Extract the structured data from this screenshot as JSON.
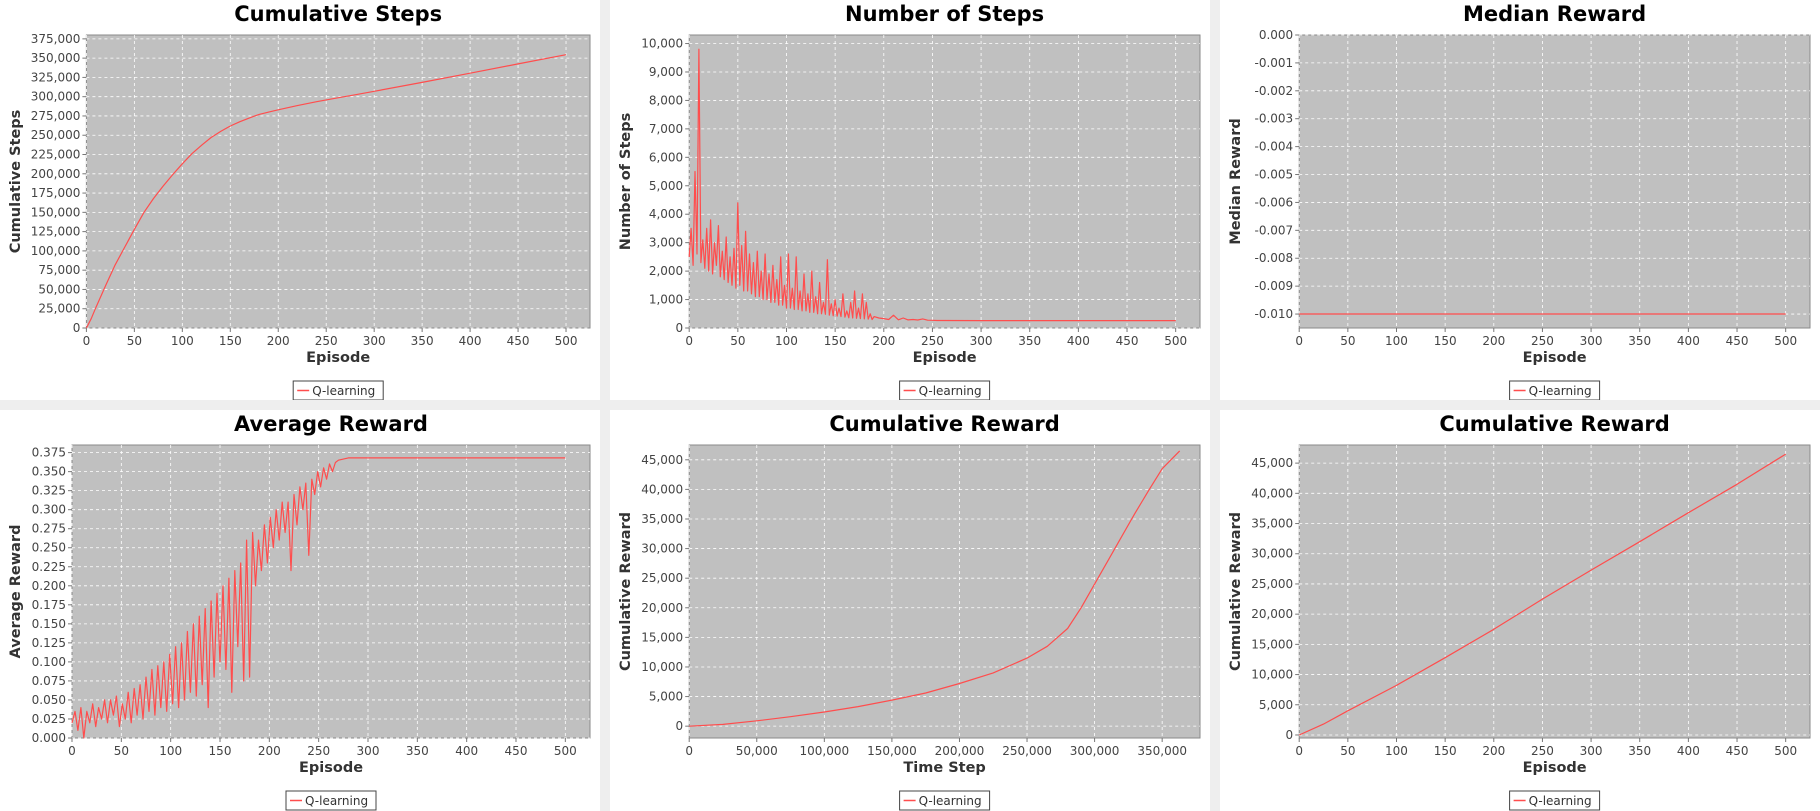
{
  "chart_data": [
    {
      "type": "line",
      "title": "Cumulative Steps",
      "xlabel": "Episode",
      "ylabel": "Cumulative Steps",
      "xlim": [
        0,
        525
      ],
      "ylim": [
        0,
        380000
      ],
      "xticks": [
        0,
        50,
        100,
        150,
        200,
        250,
        300,
        350,
        400,
        450,
        500
      ],
      "yticks": [
        0,
        25000,
        50000,
        75000,
        100000,
        125000,
        150000,
        175000,
        200000,
        225000,
        250000,
        275000,
        300000,
        325000,
        350000,
        375000
      ],
      "grid": true,
      "legend": "bottom-center",
      "series": [
        {
          "name": "Q-learning",
          "color": "#ff4d4d",
          "x": [
            0,
            5,
            10,
            20,
            30,
            40,
            50,
            60,
            70,
            80,
            90,
            100,
            110,
            120,
            130,
            140,
            150,
            160,
            170,
            180,
            190,
            200,
            220,
            240,
            260,
            280,
            300,
            350,
            400,
            450,
            500
          ],
          "y": [
            0,
            12000,
            27000,
            55000,
            82000,
            105000,
            128000,
            150000,
            168000,
            184000,
            199000,
            213000,
            226000,
            237000,
            247000,
            255000,
            262000,
            267500,
            272500,
            277000,
            280000,
            283000,
            288500,
            293500,
            298000,
            302500,
            307000,
            318500,
            330500,
            342500,
            354500
          ]
        }
      ]
    },
    {
      "type": "line",
      "title": "Number of Steps",
      "xlabel": "Episode",
      "ylabel": "Number of Steps",
      "xlim": [
        0,
        525
      ],
      "ylim": [
        0,
        10300
      ],
      "xticks": [
        0,
        50,
        100,
        150,
        200,
        250,
        300,
        350,
        400,
        450,
        500
      ],
      "yticks": [
        0,
        1000,
        2000,
        3000,
        4000,
        5000,
        6000,
        7000,
        8000,
        9000,
        10000
      ],
      "grid": true,
      "legend": "bottom-center",
      "series": [
        {
          "name": "Q-learning",
          "color": "#ff4d4d",
          "x": [
            0,
            2,
            4,
            6,
            8,
            10,
            12,
            14,
            16,
            18,
            20,
            22,
            24,
            26,
            28,
            30,
            32,
            34,
            36,
            38,
            40,
            42,
            44,
            46,
            48,
            50,
            52,
            54,
            56,
            58,
            60,
            62,
            64,
            66,
            68,
            70,
            72,
            74,
            76,
            78,
            80,
            82,
            84,
            86,
            88,
            90,
            92,
            94,
            96,
            98,
            100,
            102,
            104,
            106,
            108,
            110,
            112,
            114,
            116,
            118,
            120,
            122,
            124,
            126,
            128,
            130,
            132,
            134,
            136,
            138,
            140,
            142,
            144,
            146,
            148,
            150,
            152,
            154,
            156,
            158,
            160,
            162,
            164,
            166,
            168,
            170,
            172,
            174,
            176,
            178,
            180,
            182,
            184,
            186,
            188,
            190,
            195,
            200,
            205,
            210,
            215,
            220,
            225,
            230,
            235,
            240,
            245,
            250,
            255,
            260,
            300,
            350,
            400,
            450,
            500
          ],
          "y": [
            2500,
            3500,
            2200,
            5500,
            2600,
            9800,
            2300,
            3100,
            2100,
            3500,
            2000,
            3800,
            1900,
            3000,
            2200,
            3600,
            1800,
            2700,
            1700,
            3200,
            1600,
            2500,
            1500,
            2800,
            1400,
            4400,
            1500,
            2900,
            1300,
            3400,
            1300,
            2600,
            1200,
            2300,
            1100,
            2700,
            1100,
            2000,
            1000,
            2600,
            1000,
            1900,
            900,
            2200,
            900,
            1700,
            800,
            2500,
            800,
            1500,
            700,
            2600,
            700,
            1400,
            650,
            2500,
            650,
            1300,
            600,
            1900,
            600,
            1200,
            550,
            2000,
            550,
            1100,
            500,
            1600,
            500,
            900,
            480,
            2400,
            450,
            850,
            430,
            1000,
            420,
            700,
            400,
            1200,
            380,
            600,
            360,
            900,
            350,
            1300,
            340,
            700,
            330,
            1200,
            320,
            900,
            310,
            500,
            300,
            400,
            350,
            330,
            300,
            450,
            290,
            350,
            285,
            300,
            280,
            320,
            275,
            270,
            265,
            262,
            260,
            260,
            260,
            260,
            260
          ]
        }
      ]
    },
    {
      "type": "line",
      "title": "Median Reward",
      "xlabel": "Episode",
      "ylabel": "Median Reward",
      "xlim": [
        0,
        525
      ],
      "ylim": [
        -0.0105,
        0.0
      ],
      "xticks": [
        0,
        50,
        100,
        150,
        200,
        250,
        300,
        350,
        400,
        450,
        500
      ],
      "yticks": [
        -0.01,
        -0.009,
        -0.008,
        -0.007,
        -0.006,
        -0.005,
        -0.004,
        -0.003,
        -0.002,
        -0.001,
        0.0
      ],
      "grid": true,
      "legend": "bottom-center",
      "series": [
        {
          "name": "Q-learning",
          "color": "#ff4d4d",
          "x": [
            0,
            500
          ],
          "y": [
            -0.01,
            -0.01
          ]
        }
      ]
    },
    {
      "type": "line",
      "title": "Average Reward",
      "xlabel": "Episode",
      "ylabel": "Average Reward",
      "xlim": [
        0,
        525
      ],
      "ylim": [
        0,
        0.385
      ],
      "xticks": [
        0,
        50,
        100,
        150,
        200,
        250,
        300,
        350,
        400,
        450,
        500
      ],
      "yticks": [
        0,
        0.025,
        0.05,
        0.075,
        0.1,
        0.125,
        0.15,
        0.175,
        0.2,
        0.225,
        0.25,
        0.275,
        0.3,
        0.325,
        0.35,
        0.375
      ],
      "grid": true,
      "legend": "bottom-center",
      "series": [
        {
          "name": "Q-learning",
          "color": "#ff4d4d",
          "x": [
            0,
            3,
            6,
            9,
            12,
            15,
            18,
            21,
            24,
            27,
            30,
            33,
            36,
            39,
            42,
            45,
            48,
            51,
            54,
            57,
            60,
            63,
            66,
            69,
            72,
            75,
            78,
            81,
            84,
            87,
            90,
            93,
            96,
            99,
            102,
            105,
            108,
            111,
            114,
            117,
            120,
            123,
            126,
            129,
            132,
            135,
            138,
            141,
            144,
            147,
            150,
            153,
            156,
            159,
            162,
            165,
            168,
            171,
            174,
            177,
            180,
            183,
            186,
            189,
            192,
            195,
            198,
            201,
            204,
            207,
            210,
            213,
            216,
            219,
            222,
            225,
            228,
            231,
            234,
            237,
            240,
            243,
            246,
            249,
            252,
            255,
            258,
            261,
            264,
            267,
            270,
            280,
            300,
            350,
            400,
            450,
            500
          ],
          "y": [
            0.02,
            0.035,
            0.01,
            0.04,
            0.0,
            0.035,
            0.02,
            0.045,
            0.015,
            0.04,
            0.025,
            0.05,
            0.02,
            0.05,
            0.03,
            0.055,
            0.015,
            0.045,
            0.025,
            0.06,
            0.02,
            0.065,
            0.03,
            0.07,
            0.025,
            0.08,
            0.035,
            0.09,
            0.03,
            0.095,
            0.04,
            0.1,
            0.035,
            0.11,
            0.045,
            0.12,
            0.04,
            0.125,
            0.05,
            0.14,
            0.06,
            0.15,
            0.055,
            0.16,
            0.07,
            0.17,
            0.04,
            0.18,
            0.08,
            0.19,
            0.1,
            0.2,
            0.09,
            0.21,
            0.06,
            0.22,
            0.12,
            0.23,
            0.075,
            0.26,
            0.08,
            0.27,
            0.2,
            0.26,
            0.22,
            0.28,
            0.23,
            0.29,
            0.25,
            0.3,
            0.26,
            0.31,
            0.27,
            0.31,
            0.22,
            0.32,
            0.28,
            0.33,
            0.3,
            0.335,
            0.24,
            0.34,
            0.32,
            0.35,
            0.33,
            0.355,
            0.34,
            0.36,
            0.35,
            0.362,
            0.365,
            0.368,
            0.368,
            0.368,
            0.368,
            0.368,
            0.368
          ]
        }
      ]
    },
    {
      "type": "line",
      "title": "Cumulative Reward",
      "xlabel": "Time Step",
      "ylabel": "Cumulative Reward",
      "xlim": [
        0,
        378000
      ],
      "ylim": [
        -2000,
        47500
      ],
      "xticks": [
        0,
        50000,
        100000,
        150000,
        200000,
        250000,
        300000,
        350000
      ],
      "yticks": [
        0,
        5000,
        10000,
        15000,
        20000,
        25000,
        30000,
        35000,
        40000,
        45000
      ],
      "grid": true,
      "legend": "bottom-center",
      "series": [
        {
          "name": "Q-learning",
          "color": "#ff4d4d",
          "x": [
            0,
            25000,
            50000,
            75000,
            100000,
            125000,
            150000,
            175000,
            200000,
            225000,
            250000,
            265000,
            280000,
            290000,
            300000,
            310000,
            320000,
            330000,
            340000,
            350000,
            363000
          ],
          "y": [
            0,
            300,
            900,
            1600,
            2400,
            3300,
            4400,
            5600,
            7200,
            9000,
            11500,
            13500,
            16500,
            20000,
            24000,
            28000,
            32000,
            36000,
            39800,
            43500,
            46500
          ]
        }
      ]
    },
    {
      "type": "line",
      "title": "Cumulative Reward",
      "xlabel": "Episode",
      "ylabel": "Cumulative Reward",
      "xlim": [
        0,
        525
      ],
      "ylim": [
        -500,
        48000
      ],
      "xticks": [
        0,
        50,
        100,
        150,
        200,
        250,
        300,
        350,
        400,
        450,
        500
      ],
      "yticks": [
        0,
        5000,
        10000,
        15000,
        20000,
        25000,
        30000,
        35000,
        40000,
        45000
      ],
      "grid": true,
      "legend": "bottom-center",
      "series": [
        {
          "name": "Q-learning",
          "color": "#ff4d4d",
          "x": [
            0,
            25,
            50,
            100,
            150,
            200,
            250,
            300,
            350,
            400,
            450,
            500
          ],
          "y": [
            0,
            1800,
            4000,
            8200,
            12800,
            17500,
            22500,
            27300,
            32000,
            36800,
            41500,
            46500
          ]
        }
      ]
    }
  ]
}
